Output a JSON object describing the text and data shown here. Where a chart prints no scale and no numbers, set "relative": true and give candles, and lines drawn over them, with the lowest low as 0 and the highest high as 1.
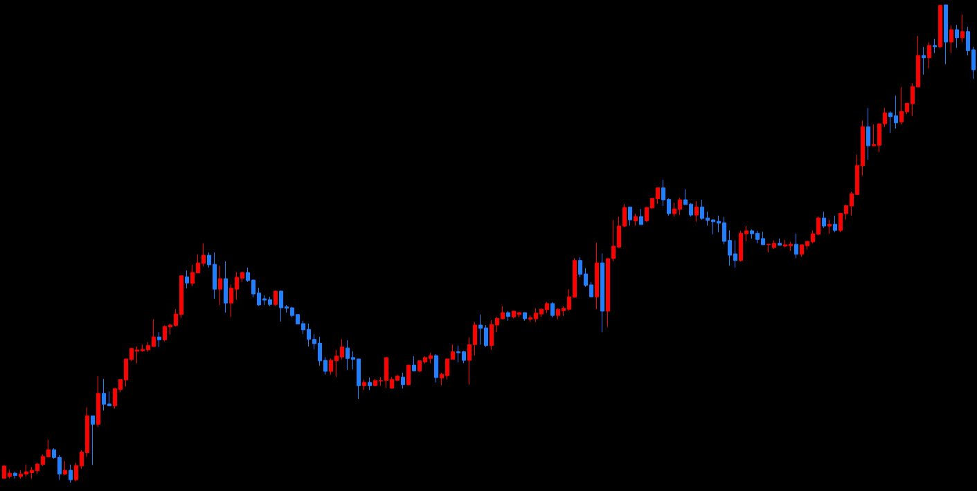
{
  "chart_data": {
    "type": "candlestick",
    "relative": true,
    "categories": [
      null,
      null,
      null,
      null,
      null,
      null,
      null,
      null,
      null,
      null,
      null,
      null,
      null,
      null,
      null,
      null,
      null,
      null,
      null,
      null,
      null,
      null,
      null,
      null,
      null,
      null,
      null,
      null,
      null,
      null,
      null,
      null,
      null,
      null,
      null,
      null,
      null,
      null,
      null,
      null,
      null,
      null,
      null,
      null,
      null,
      null,
      null,
      null,
      null,
      null,
      null,
      null,
      null,
      null,
      null,
      null,
      null,
      null,
      null,
      null,
      null,
      null,
      null,
      null,
      null,
      null,
      null,
      null,
      null,
      null,
      null,
      null,
      null,
      null,
      null,
      null,
      null,
      null,
      null,
      null,
      null,
      null,
      null,
      null,
      null,
      null,
      null,
      null,
      null,
      null,
      null,
      null,
      null,
      null,
      null,
      null,
      null,
      null,
      null,
      null,
      null,
      null,
      null,
      null,
      null,
      null,
      null,
      null,
      null,
      null,
      null,
      null,
      null,
      null,
      null,
      null,
      null,
      null,
      null,
      null,
      null,
      null,
      null,
      null,
      null,
      null,
      null,
      null,
      null,
      null,
      null,
      null,
      null,
      null,
      null,
      null,
      null,
      null,
      null,
      null,
      null,
      null,
      null,
      null,
      null,
      null,
      null,
      null,
      null,
      null,
      null,
      null,
      null,
      null,
      null,
      null,
      null,
      null,
      null,
      null,
      null,
      null,
      null,
      null,
      null,
      null,
      null,
      null,
      null,
      null,
      null,
      null,
      null,
      null,
      null,
      null
    ],
    "ohlc": [
      [
        0.009,
        0.035,
        0.008,
        0.035
      ],
      [
        0.013,
        0.027,
        0.009,
        0.02
      ],
      [
        0.02,
        0.023,
        0.009,
        0.015
      ],
      [
        0.013,
        0.026,
        0.008,
        0.018
      ],
      [
        0.018,
        0.038,
        0.013,
        0.023
      ],
      [
        0.021,
        0.033,
        0.008,
        0.026
      ],
      [
        0.025,
        0.042,
        0.018,
        0.039
      ],
      [
        0.038,
        0.059,
        0.035,
        0.055
      ],
      [
        0.054,
        0.09,
        0.054,
        0.069
      ],
      [
        0.069,
        0.072,
        0.05,
        0.053
      ],
      [
        0.053,
        0.058,
        0.006,
        0.018
      ],
      [
        0.018,
        0.045,
        0.016,
        0.026
      ],
      [
        0.026,
        0.038,
        0,
        0.006
      ],
      [
        0.006,
        0.042,
        0.003,
        0.036
      ],
      [
        0.035,
        0.068,
        0.029,
        0.064
      ],
      [
        0.063,
        0.158,
        0.054,
        0.14
      ],
      [
        0.14,
        0.14,
        0.037,
        0.122
      ],
      [
        0.122,
        0.223,
        0.116,
        0.187
      ],
      [
        0.187,
        0.217,
        0.151,
        0.164
      ],
      [
        0.165,
        0.191,
        0.161,
        0.161
      ],
      [
        0.161,
        0.197,
        0.155,
        0.197
      ],
      [
        0.195,
        0.216,
        0.189,
        0.216
      ],
      [
        0.215,
        0.259,
        0.201,
        0.259
      ],
      [
        0.258,
        0.282,
        0.254,
        0.281
      ],
      [
        0.275,
        0.285,
        0.25,
        0.278
      ],
      [
        0.276,
        0.289,
        0.274,
        0.279
      ],
      [
        0.278,
        0.294,
        0.274,
        0.287
      ],
      [
        0.285,
        0.342,
        0.284,
        0.305
      ],
      [
        0.305,
        0.315,
        0.284,
        0.299
      ],
      [
        0.299,
        0.329,
        0.296,
        0.327
      ],
      [
        0.326,
        0.333,
        0.31,
        0.33
      ],
      [
        0.329,
        0.363,
        0.327,
        0.353
      ],
      [
        0.352,
        0.434,
        0.344,
        0.433
      ],
      [
        0.431,
        0.444,
        0.407,
        0.418
      ],
      [
        0.417,
        0.456,
        0.411,
        0.44
      ],
      [
        0.439,
        0.478,
        0.439,
        0.46
      ],
      [
        0.459,
        0.501,
        0.453,
        0.476
      ],
      [
        0.476,
        0.482,
        0.45,
        0.456
      ],
      [
        0.457,
        0.482,
        0.385,
        0.405
      ],
      [
        0.405,
        0.454,
        0.372,
        0.427
      ],
      [
        0.427,
        0.463,
        0.356,
        0.376
      ],
      [
        0.376,
        0.415,
        0.347,
        0.407
      ],
      [
        0.405,
        0.441,
        0.383,
        0.43
      ],
      [
        0.428,
        0.441,
        0.42,
        0.44
      ],
      [
        0.44,
        0.45,
        0.42,
        0.423
      ],
      [
        0.424,
        0.425,
        0.388,
        0.395
      ],
      [
        0.397,
        0.408,
        0.37,
        0.372
      ],
      [
        0.385,
        0.392,
        0.372,
        0.382
      ],
      [
        0.383,
        0.389,
        0.37,
        0.373
      ],
      [
        0.373,
        0.402,
        0.37,
        0.401
      ],
      [
        0.401,
        0.402,
        0.337,
        0.366
      ],
      [
        0.368,
        0.372,
        0.356,
        0.365
      ],
      [
        0.366,
        0.368,
        0.347,
        0.35
      ],
      [
        0.352,
        0.352,
        0.332,
        0.332
      ],
      [
        0.333,
        0.339,
        0.311,
        0.32
      ],
      [
        0.321,
        0.333,
        0.285,
        0.3
      ],
      [
        0.3,
        0.311,
        0.279,
        0.291
      ],
      [
        0.292,
        0.305,
        0.245,
        0.255
      ],
      [
        0.256,
        0.263,
        0.226,
        0.233
      ],
      [
        0.233,
        0.26,
        0.226,
        0.256
      ],
      [
        0.255,
        0.278,
        0.221,
        0.265
      ],
      [
        0.263,
        0.3,
        0.258,
        0.284
      ],
      [
        0.282,
        0.298,
        0.236,
        0.26
      ],
      [
        0.262,
        0.275,
        0.237,
        0.258
      ],
      [
        0.259,
        0.259,
        0.175,
        0.203
      ],
      [
        0.203,
        0.216,
        0.194,
        0.21
      ],
      [
        0.21,
        0.22,
        0.194,
        0.203
      ],
      [
        0.203,
        0.217,
        0.203,
        0.214
      ],
      [
        0.213,
        0.221,
        0.203,
        0.214
      ],
      [
        0.214,
        0.262,
        0.198,
        0.262
      ],
      [
        0.198,
        0.221,
        0.198,
        0.216
      ],
      [
        0.214,
        0.226,
        0.214,
        0.223
      ],
      [
        0.221,
        0.23,
        0.197,
        0.205
      ],
      [
        0.205,
        0.246,
        0.205,
        0.246
      ],
      [
        0.246,
        0.265,
        0.233,
        0.234
      ],
      [
        0.234,
        0.256,
        0.232,
        0.255
      ],
      [
        0.253,
        0.265,
        0.249,
        0.262
      ],
      [
        0.26,
        0.272,
        0.25,
        0.266
      ],
      [
        0.266,
        0.269,
        0.21,
        0.22
      ],
      [
        0.219,
        0.23,
        0.204,
        0.227
      ],
      [
        0.224,
        0.259,
        0.216,
        0.259
      ],
      [
        0.258,
        0.289,
        0.258,
        0.274
      ],
      [
        0.274,
        0.287,
        0.252,
        0.272
      ],
      [
        0.274,
        0.276,
        0.25,
        0.256
      ],
      [
        0.256,
        0.304,
        0.205,
        0.289
      ],
      [
        0.289,
        0.336,
        0.266,
        0.33
      ],
      [
        0.33,
        0.352,
        0.289,
        0.323
      ],
      [
        0.324,
        0.33,
        0.284,
        0.287
      ],
      [
        0.287,
        0.34,
        0.278,
        0.331
      ],
      [
        0.33,
        0.347,
        0.315,
        0.344
      ],
      [
        0.343,
        0.369,
        0.342,
        0.356
      ],
      [
        0.356,
        0.359,
        0.339,
        0.348
      ],
      [
        0.347,
        0.36,
        0.344,
        0.359
      ],
      [
        0.352,
        0.357,
        0.346,
        0.356
      ],
      [
        0.356,
        0.356,
        0.339,
        0.343
      ],
      [
        0.342,
        0.35,
        0.336,
        0.345
      ],
      [
        0.343,
        0.365,
        0.336,
        0.355
      ],
      [
        0.353,
        0.365,
        0.347,
        0.363
      ],
      [
        0.362,
        0.378,
        0.355,
        0.375
      ],
      [
        0.375,
        0.378,
        0.346,
        0.35
      ],
      [
        0.35,
        0.365,
        0.342,
        0.363
      ],
      [
        0.36,
        0.369,
        0.349,
        0.365
      ],
      [
        0.363,
        0.405,
        0.36,
        0.389
      ],
      [
        0.388,
        0.47,
        0.388,
        0.465
      ],
      [
        0.465,
        0.472,
        0.43,
        0.436
      ],
      [
        0.437,
        0.449,
        0.41,
        0.413
      ],
      [
        0.414,
        0.42,
        0.388,
        0.389
      ],
      [
        0.389,
        0.502,
        0.363,
        0.46
      ],
      [
        0.46,
        0.48,
        0.315,
        0.359
      ],
      [
        0.359,
        0.469,
        0.326,
        0.469
      ],
      [
        0.469,
        0.55,
        0.463,
        0.495
      ],
      [
        0.493,
        0.557,
        0.491,
        0.537
      ],
      [
        0.537,
        0.583,
        0.535,
        0.576
      ],
      [
        0.577,
        0.577,
        0.538,
        0.55
      ],
      [
        0.548,
        0.563,
        0.538,
        0.557
      ],
      [
        0.557,
        0.573,
        0.54,
        0.54
      ],
      [
        0.548,
        0.577,
        0.546,
        0.576
      ],
      [
        0.575,
        0.595,
        0.573,
        0.595
      ],
      [
        0.594,
        0.617,
        0.583,
        0.617
      ],
      [
        0.617,
        0.634,
        0.579,
        0.592
      ],
      [
        0.593,
        0.595,
        0.559,
        0.563
      ],
      [
        0.563,
        0.586,
        0.557,
        0.573
      ],
      [
        0.572,
        0.596,
        0.56,
        0.592
      ],
      [
        0.592,
        0.614,
        0.582,
        0.582
      ],
      [
        0.583,
        0.585,
        0.557,
        0.56
      ],
      [
        0.56,
        0.589,
        0.546,
        0.577
      ],
      [
        0.577,
        0.592,
        0.55,
        0.553
      ],
      [
        0.554,
        0.567,
        0.538,
        0.549
      ],
      [
        0.55,
        0.551,
        0.52,
        0.546
      ],
      [
        0.547,
        0.559,
        0.524,
        0.543
      ],
      [
        0.544,
        0.556,
        0.499,
        0.505
      ],
      [
        0.507,
        0.528,
        0.454,
        0.476
      ],
      [
        0.479,
        0.507,
        0.45,
        0.465
      ],
      [
        0.465,
        0.527,
        0.463,
        0.522
      ],
      [
        0.521,
        0.537,
        0.505,
        0.527
      ],
      [
        0.527,
        0.53,
        0.511,
        0.521
      ],
      [
        0.522,
        0.527,
        0.501,
        0.509
      ],
      [
        0.511,
        0.525,
        0.498,
        0.498
      ],
      [
        0.498,
        0.499,
        0.482,
        0.499
      ],
      [
        0.492,
        0.507,
        0.489,
        0.501
      ],
      [
        0.501,
        0.511,
        0.497,
        0.497
      ],
      [
        0.495,
        0.508,
        0.493,
        0.498
      ],
      [
        0.496,
        0.504,
        0.485,
        0.499
      ],
      [
        0.499,
        0.521,
        0.47,
        0.478
      ],
      [
        0.478,
        0.498,
        0.473,
        0.498
      ],
      [
        0.496,
        0.505,
        0.488,
        0.505
      ],
      [
        0.504,
        0.528,
        0.501,
        0.521
      ],
      [
        0.52,
        0.557,
        0.518,
        0.554
      ],
      [
        0.554,
        0.567,
        0.533,
        0.537
      ],
      [
        0.537,
        0.55,
        0.521,
        0.541
      ],
      [
        0.541,
        0.559,
        0.524,
        0.528
      ],
      [
        0.528,
        0.564,
        0.524,
        0.564
      ],
      [
        0.563,
        0.582,
        0.551,
        0.58
      ],
      [
        0.579,
        0.609,
        0.559,
        0.605
      ],
      [
        0.603,
        0.687,
        0.603,
        0.664
      ],
      [
        0.663,
        0.758,
        0.643,
        0.745
      ],
      [
        0.745,
        0.784,
        0.676,
        0.705
      ],
      [
        0.705,
        0.75,
        0.705,
        0.708
      ],
      [
        0.706,
        0.751,
        0.692,
        0.751
      ],
      [
        0.751,
        0.784,
        0.744,
        0.774
      ],
      [
        0.774,
        0.777,
        0.732,
        0.766
      ],
      [
        0.768,
        0.81,
        0.741,
        0.753
      ],
      [
        0.755,
        0.828,
        0.75,
        0.777
      ],
      [
        0.776,
        0.794,
        0.771,
        0.794
      ],
      [
        0.793,
        0.836,
        0.767,
        0.829
      ],
      [
        0.828,
        0.935,
        0.828,
        0.894
      ],
      [
        0.894,
        0.912,
        0.854,
        0.889
      ],
      [
        0.889,
        0.922,
        0.867,
        0.915
      ],
      [
        0.915,
        0.929,
        0.899,
        0.912
      ],
      [
        0.912,
        1,
        0.909,
        0.999
      ],
      [
        1,
        1,
        0.876,
        0.922
      ],
      [
        0.922,
        0.957,
        0.899,
        0.948
      ],
      [
        0.948,
        0.958,
        0.91,
        0.931
      ],
      [
        0.931,
        0.98,
        0.922,
        0.944
      ],
      [
        0.944,
        0.954,
        0.894,
        0.904
      ],
      [
        0.906,
        0.912,
        0.845,
        0.864
      ]
    ],
    "colors": [
      "#ff0000",
      "#ff0000",
      "#2080ff",
      "#ff0000",
      "#ff0000",
      "#ff0000",
      "#ff0000",
      "#ff0000",
      "#ff0000",
      "#2080ff",
      "#2080ff",
      "#ff0000",
      "#2080ff",
      "#ff0000",
      "#ff0000",
      "#ff0000",
      "#2080ff",
      "#ff0000",
      "#2080ff",
      "#2080ff",
      "#ff0000",
      "#ff0000",
      "#ff0000",
      "#ff0000",
      "#ff0000",
      "#ff0000",
      "#ff0000",
      "#ff0000",
      "#2080ff",
      "#ff0000",
      "#ff0000",
      "#ff0000",
      "#ff0000",
      "#2080ff",
      "#ff0000",
      "#ff0000",
      "#ff0000",
      "#2080ff",
      "#2080ff",
      "#ff0000",
      "#2080ff",
      "#ff0000",
      "#ff0000",
      "#ff0000",
      "#2080ff",
      "#2080ff",
      "#2080ff",
      "#2080ff",
      "#2080ff",
      "#ff0000",
      "#2080ff",
      "#2080ff",
      "#2080ff",
      "#2080ff",
      "#2080ff",
      "#2080ff",
      "#2080ff",
      "#2080ff",
      "#2080ff",
      "#ff0000",
      "#ff0000",
      "#ff0000",
      "#2080ff",
      "#2080ff",
      "#2080ff",
      "#ff0000",
      "#2080ff",
      "#ff0000",
      "#ff0000",
      "#ff0000",
      "#ff0000",
      "#ff0000",
      "#2080ff",
      "#ff0000",
      "#2080ff",
      "#ff0000",
      "#ff0000",
      "#ff0000",
      "#2080ff",
      "#ff0000",
      "#ff0000",
      "#ff0000",
      "#2080ff",
      "#2080ff",
      "#ff0000",
      "#ff0000",
      "#2080ff",
      "#2080ff",
      "#ff0000",
      "#ff0000",
      "#ff0000",
      "#2080ff",
      "#ff0000",
      "#ff0000",
      "#2080ff",
      "#ff0000",
      "#ff0000",
      "#ff0000",
      "#ff0000",
      "#2080ff",
      "#ff0000",
      "#ff0000",
      "#ff0000",
      "#ff0000",
      "#2080ff",
      "#2080ff",
      "#2080ff",
      "#ff0000",
      "#2080ff",
      "#ff0000",
      "#ff0000",
      "#ff0000",
      "#ff0000",
      "#2080ff",
      "#ff0000",
      "#2080ff",
      "#ff0000",
      "#ff0000",
      "#ff0000",
      "#2080ff",
      "#2080ff",
      "#ff0000",
      "#ff0000",
      "#2080ff",
      "#2080ff",
      "#ff0000",
      "#2080ff",
      "#2080ff",
      "#2080ff",
      "#2080ff",
      "#2080ff",
      "#2080ff",
      "#2080ff",
      "#ff0000",
      "#ff0000",
      "#2080ff",
      "#2080ff",
      "#2080ff",
      "#ff0000",
      "#ff0000",
      "#2080ff",
      "#ff0000",
      "#ff0000",
      "#2080ff",
      "#ff0000",
      "#ff0000",
      "#ff0000",
      "#ff0000",
      "#2080ff",
      "#ff0000",
      "#2080ff",
      "#ff0000",
      "#ff0000",
      "#ff0000",
      "#ff0000",
      "#ff0000",
      "#2080ff",
      "#ff0000",
      "#ff0000",
      "#ff0000",
      "#2080ff",
      "#2080ff",
      "#ff0000",
      "#ff0000",
      "#ff0000",
      "#ff0000",
      "#2080ff",
      "#ff0000",
      "#2080ff",
      "#ff0000",
      "#2080ff",
      "#ff0000",
      "#2080ff",
      "#ff0000",
      "#2080ff",
      "#2080ff"
    ]
  }
}
